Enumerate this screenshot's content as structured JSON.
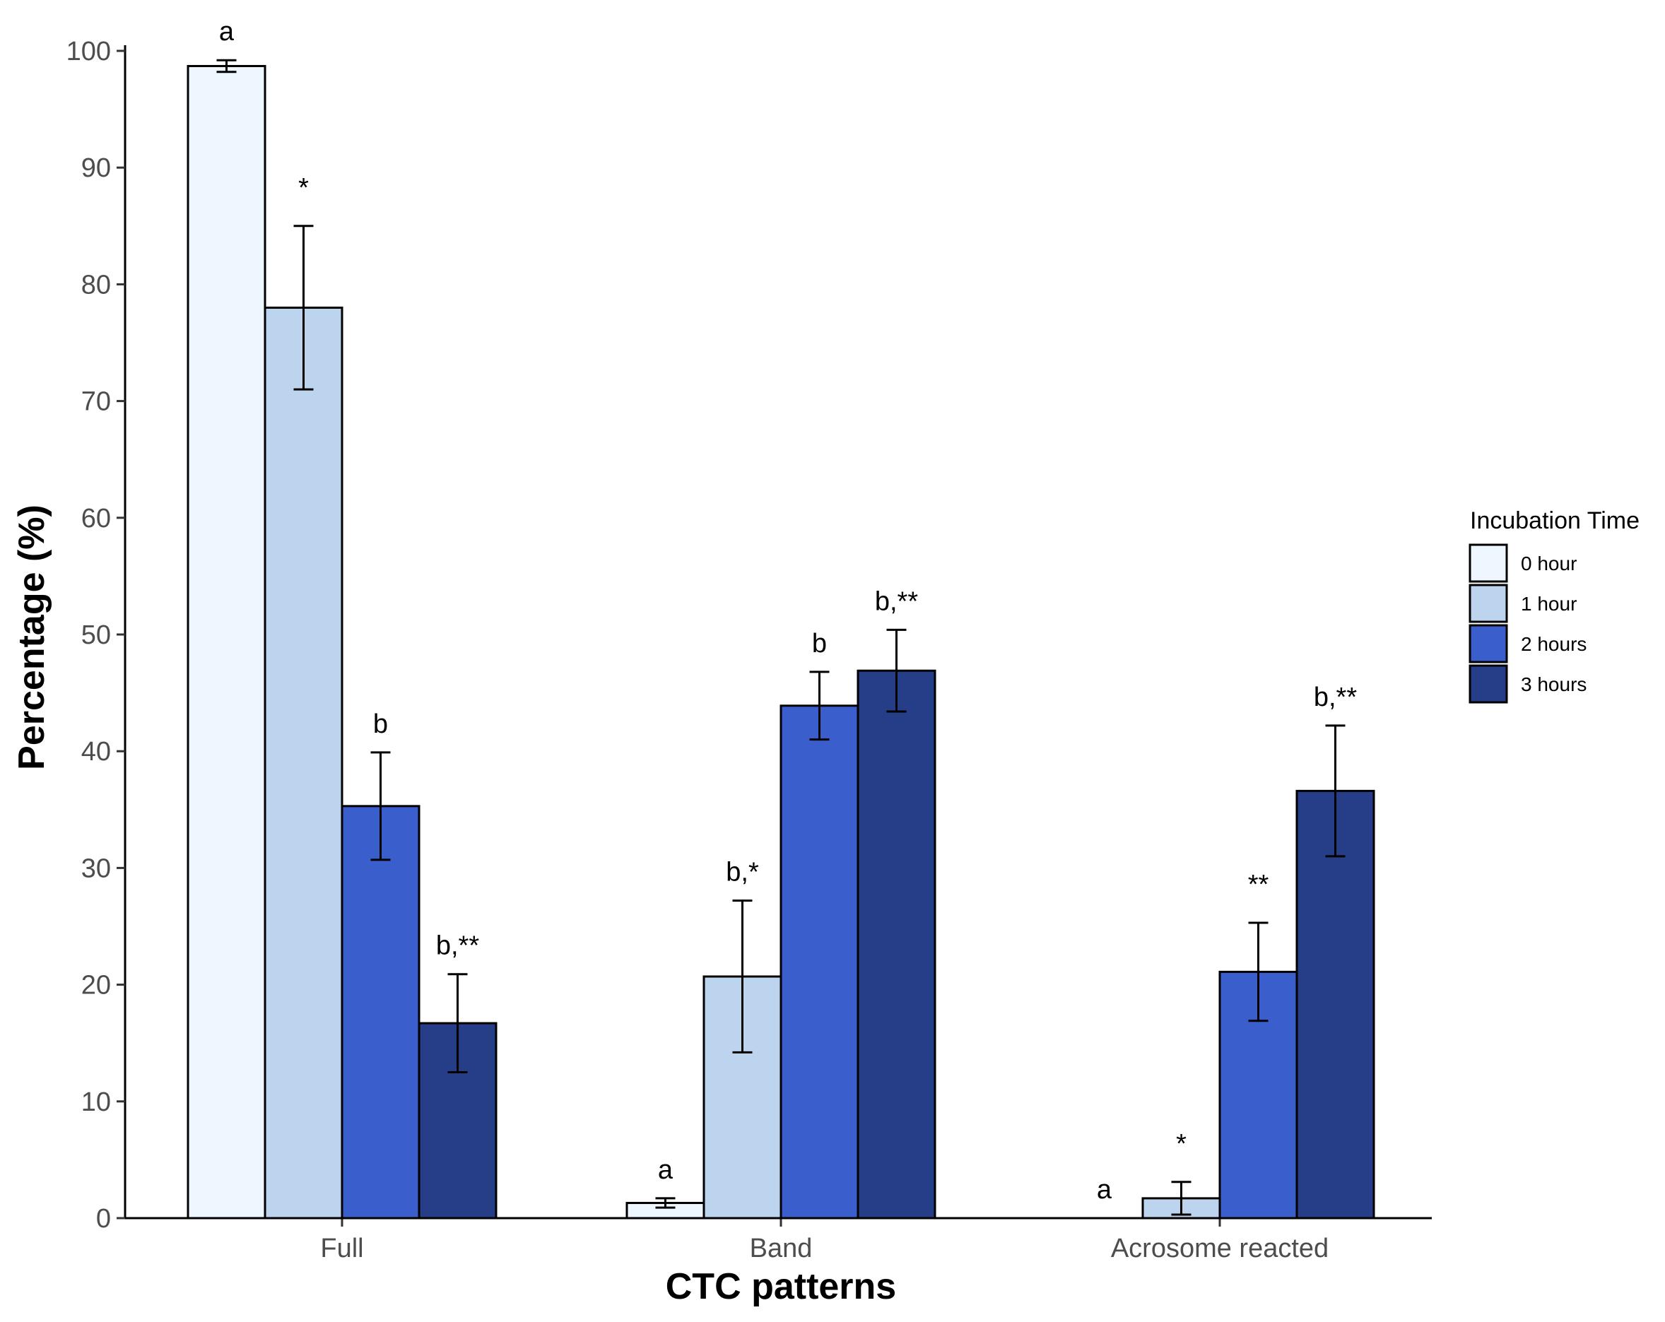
{
  "chart_data": {
    "type": "bar",
    "title": "",
    "xlabel": "CTC patterns",
    "ylabel": "Percentage (%)",
    "ylim": [
      0,
      100
    ],
    "yticks": [
      0,
      10,
      20,
      30,
      40,
      50,
      60,
      70,
      80,
      90,
      100
    ],
    "categories": [
      "Full",
      "Band",
      "Acrosome reacted"
    ],
    "legend": {
      "title": "Incubation Time",
      "position": "right"
    },
    "series": [
      {
        "name": "0 hour",
        "color": "#eef6ff",
        "values": [
          98.7,
          1.3,
          0.0
        ],
        "errors": [
          0.5,
          0.4,
          0.0
        ],
        "annotations": [
          "a",
          "a",
          "a"
        ]
      },
      {
        "name": "1 hour",
        "color": "#bcd4ee",
        "values": [
          78.0,
          20.7,
          1.7
        ],
        "errors": [
          7.0,
          6.5,
          1.4
        ],
        "annotations": [
          "*",
          "b,*",
          "*"
        ]
      },
      {
        "name": "2 hours",
        "color": "#3a5fcd",
        "values": [
          35.3,
          43.9,
          21.1
        ],
        "errors": [
          4.6,
          2.9,
          4.2
        ],
        "annotations": [
          "b",
          "b",
          "**"
        ]
      },
      {
        "name": "3 hours",
        "color": "#263d87",
        "values": [
          16.7,
          46.9,
          36.6
        ],
        "errors": [
          4.2,
          3.5,
          5.6
        ],
        "annotations": [
          "b,**",
          "b,**",
          "b,**"
        ]
      }
    ],
    "grid": false
  }
}
